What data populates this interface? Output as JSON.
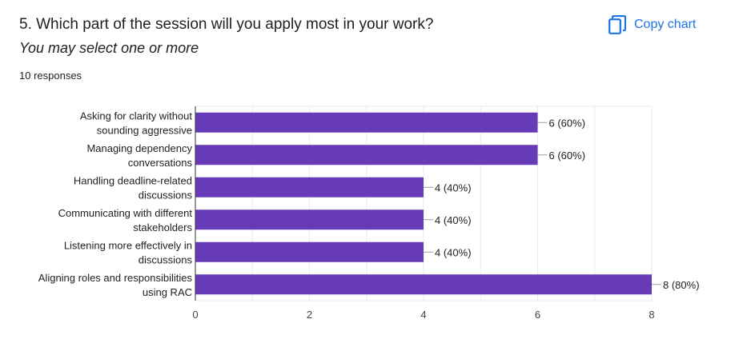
{
  "question": {
    "title": "5. Which part of the session will you apply most in your work?",
    "subtitle": "You may select one or more",
    "responses_label": "10 responses"
  },
  "toolbar": {
    "copy_label": "Copy chart",
    "copy_icon": "copy-icon"
  },
  "colors": {
    "bar": "#673ab7",
    "grid": "#e8eaed",
    "axis": "#333333",
    "text": "#202124",
    "accent": "#1a73e8"
  },
  "chart_data": {
    "type": "bar",
    "orientation": "horizontal",
    "categories": [
      [
        "Asking for clarity without",
        "sounding aggressive"
      ],
      [
        "Managing dependency",
        "conversations"
      ],
      [
        "Handling deadline-related",
        "discussions"
      ],
      [
        "Communicating with different",
        "stakeholders"
      ],
      [
        "Listening more effectively in",
        "discussions"
      ],
      [
        "Aligning roles and responsibilities",
        "using RAC"
      ]
    ],
    "values": [
      6,
      6,
      4,
      4,
      4,
      8
    ],
    "data_labels": [
      "6 (60%)",
      "6 (60%)",
      "4 (40%)",
      "4 (40%)",
      "4 (40%)",
      "8 (80%)"
    ],
    "xticks": [
      0,
      2,
      4,
      6,
      8
    ],
    "xlim": [
      0,
      8
    ],
    "grid": true
  }
}
